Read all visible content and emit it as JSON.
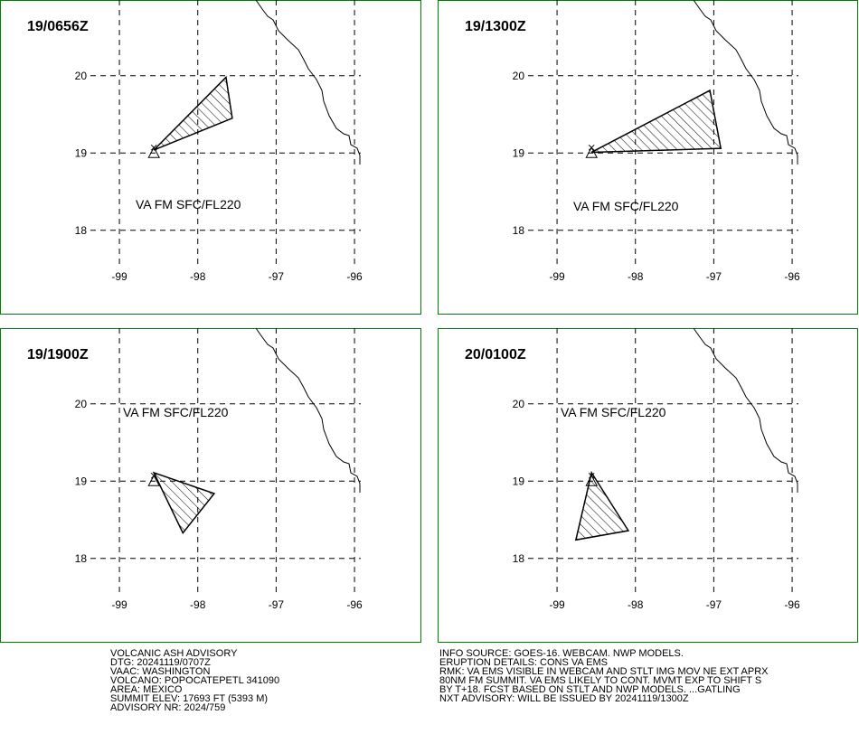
{
  "panels": [
    {
      "title": "19/0656Z",
      "label": "VA FM SFC/FL220",
      "polygon": {
        "lon": [
          -98.56,
          -97.64,
          -97.56
        ],
        "lat": [
          19.04,
          19.98,
          19.45
        ]
      },
      "volcano": {
        "lon": -98.56,
        "lat": 19.0
      }
    },
    {
      "title": "19/1300Z",
      "label": "VA FM SFC/FL220",
      "polygon": {
        "lon": [
          -98.56,
          -97.05,
          -96.91
        ],
        "lat": [
          19.01,
          19.81,
          19.06
        ]
      },
      "volcano": {
        "lon": -98.56,
        "lat": 19.0
      }
    },
    {
      "title": "19/1900Z",
      "label": "VA FM SFC/FL220",
      "polygon": {
        "lon": [
          -98.56,
          -97.79,
          -98.19
        ],
        "lat": [
          19.11,
          18.84,
          18.33
        ]
      },
      "volcano": {
        "lon": -98.56,
        "lat": 19.0
      }
    },
    {
      "title": "20/0100Z",
      "label": "VA FM SFC/FL220",
      "polygon": {
        "lon": [
          -98.56,
          -98.09,
          -98.76
        ],
        "lat": [
          19.11,
          18.36,
          18.24
        ]
      },
      "volcano": {
        "lon": -98.56,
        "lat": 19.0
      }
    }
  ],
  "axes": {
    "xlim": [
      -99.37,
      -95.92
    ],
    "ylim": [
      17.53,
      20.98
    ],
    "xticks": [
      -99,
      -98,
      -97,
      -96
    ],
    "yticks": [
      18,
      19,
      20
    ]
  },
  "advisory": {
    "left": [
      "VOLCANIC ASH ADVISORY",
      "DTG: 20241119/0707Z",
      "VAAC: WASHINGTON",
      "VOLCANO: POPOCATEPETL 341090",
      "AREA: MEXICO",
      "SUMMIT ELEV: 17693 FT (5393 M)",
      "ADVISORY NR: 2024/759"
    ],
    "right": [
      "INFO SOURCE: GOES-16. WEBCAM. NWP MODELS.",
      "ERUPTION DETAILS: CONS VA EMS",
      "RMK: VA EMS VISIBLE IN WEBCAM AND STLT IMG MOV NE EXT APRX",
      "80NM FM SUMMIT. VA EMS LIKELY TO CONT. MVMT EXP TO SHIFT S",
      "BY T+18. FCST BASED ON STLT AND NWP MODELS. ...GATLING",
      "NXT ADVISORY: WILL BE ISSUED BY 20241119/1300Z"
    ]
  }
}
